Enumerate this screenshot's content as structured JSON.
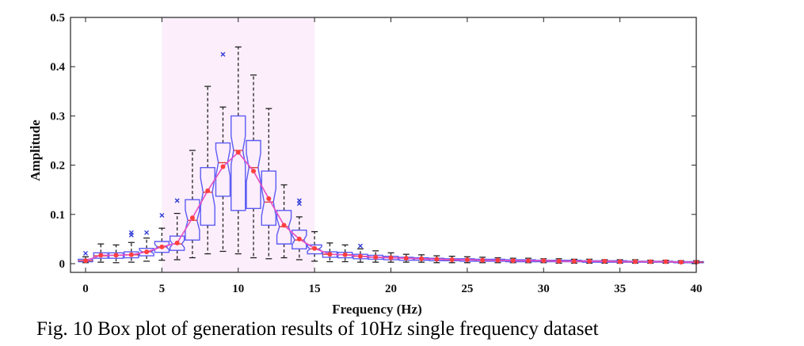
{
  "chart_data": {
    "type": "box",
    "xlabel": "Frequency (Hz)",
    "ylabel": "Amplitude",
    "xlim": [
      -1,
      40
    ],
    "ylim": [
      -0.02,
      0.5
    ],
    "xticks": [
      0,
      5,
      10,
      15,
      20,
      25,
      30,
      35,
      40
    ],
    "yticks": [
      0,
      0.1,
      0.2,
      0.3,
      0.4,
      0.5
    ],
    "ytick_labels": [
      "0",
      "0.1",
      "0.2",
      "0.3",
      "0.4",
      "0.5"
    ],
    "highlight_band": {
      "x_from": 5,
      "x_to": 15,
      "color": "#fceefa"
    },
    "box_color": "#5b5bf5",
    "mean_line_color": "#e64fc2",
    "mean_marker_color": "#ff3f3f",
    "outlier_color": "#2f3cd6",
    "boxes": [
      {
        "x": 0,
        "min": 0.002,
        "q1": 0.004,
        "median": 0.006,
        "q3": 0.009,
        "max": 0.014,
        "mean": 0.006,
        "outliers": [
          0.021
        ]
      },
      {
        "x": 1,
        "min": 0.003,
        "q1": 0.011,
        "median": 0.016,
        "q3": 0.022,
        "max": 0.04,
        "mean": 0.017,
        "outliers": []
      },
      {
        "x": 2,
        "min": 0.002,
        "q1": 0.011,
        "median": 0.017,
        "q3": 0.022,
        "max": 0.038,
        "mean": 0.017,
        "outliers": []
      },
      {
        "x": 3,
        "min": 0.003,
        "q1": 0.012,
        "median": 0.018,
        "q3": 0.024,
        "max": 0.043,
        "mean": 0.018,
        "outliers": [
          0.058,
          0.063
        ]
      },
      {
        "x": 4,
        "min": 0.005,
        "q1": 0.016,
        "median": 0.024,
        "q3": 0.031,
        "max": 0.052,
        "mean": 0.024,
        "outliers": [
          0.063
        ]
      },
      {
        "x": 5,
        "min": 0.007,
        "q1": 0.023,
        "median": 0.034,
        "q3": 0.045,
        "max": 0.072,
        "mean": 0.034,
        "outliers": [
          0.098
        ]
      },
      {
        "x": 6,
        "min": 0.008,
        "q1": 0.027,
        "median": 0.04,
        "q3": 0.056,
        "max": 0.102,
        "mean": 0.042,
        "outliers": [
          0.128
        ]
      },
      {
        "x": 7,
        "min": 0.012,
        "q1": 0.048,
        "median": 0.088,
        "q3": 0.13,
        "max": 0.23,
        "mean": 0.093,
        "outliers": []
      },
      {
        "x": 8,
        "min": 0.02,
        "q1": 0.078,
        "median": 0.145,
        "q3": 0.195,
        "max": 0.36,
        "mean": 0.148,
        "outliers": []
      },
      {
        "x": 9,
        "min": 0.025,
        "q1": 0.137,
        "median": 0.205,
        "q3": 0.245,
        "max": 0.318,
        "mean": 0.197,
        "outliers": [
          0.425
        ]
      },
      {
        "x": 10,
        "min": 0.02,
        "q1": 0.108,
        "median": 0.23,
        "q3": 0.3,
        "max": 0.44,
        "mean": 0.226,
        "outliers": []
      },
      {
        "x": 11,
        "min": 0.012,
        "q1": 0.112,
        "median": 0.195,
        "q3": 0.25,
        "max": 0.383,
        "mean": 0.188,
        "outliers": []
      },
      {
        "x": 12,
        "min": 0.01,
        "q1": 0.078,
        "median": 0.125,
        "q3": 0.188,
        "max": 0.315,
        "mean": 0.132,
        "outliers": []
      },
      {
        "x": 13,
        "min": 0.012,
        "q1": 0.04,
        "median": 0.075,
        "q3": 0.108,
        "max": 0.16,
        "mean": 0.078,
        "outliers": []
      },
      {
        "x": 14,
        "min": 0.008,
        "q1": 0.03,
        "median": 0.048,
        "q3": 0.068,
        "max": 0.095,
        "mean": 0.05,
        "outliers": [
          0.122,
          0.128
        ]
      },
      {
        "x": 15,
        "min": 0.005,
        "q1": 0.02,
        "median": 0.03,
        "q3": 0.038,
        "max": 0.065,
        "mean": 0.031,
        "outliers": []
      },
      {
        "x": 16,
        "min": 0.004,
        "q1": 0.013,
        "median": 0.019,
        "q3": 0.024,
        "max": 0.042,
        "mean": 0.019,
        "outliers": []
      },
      {
        "x": 17,
        "min": 0.004,
        "q1": 0.012,
        "median": 0.018,
        "q3": 0.023,
        "max": 0.038,
        "mean": 0.018,
        "outliers": []
      },
      {
        "x": 18,
        "min": 0.003,
        "q1": 0.01,
        "median": 0.015,
        "q3": 0.019,
        "max": 0.03,
        "mean": 0.015,
        "outliers": [
          0.036
        ]
      },
      {
        "x": 19,
        "min": 0.003,
        "q1": 0.009,
        "median": 0.013,
        "q3": 0.017,
        "max": 0.026,
        "mean": 0.013,
        "outliers": []
      },
      {
        "x": 20,
        "min": 0.003,
        "q1": 0.008,
        "median": 0.012,
        "q3": 0.015,
        "max": 0.022,
        "mean": 0.012,
        "outliers": []
      },
      {
        "x": 21,
        "min": 0.003,
        "q1": 0.007,
        "median": 0.011,
        "q3": 0.013,
        "max": 0.019,
        "mean": 0.011,
        "outliers": []
      },
      {
        "x": 22,
        "min": 0.003,
        "q1": 0.007,
        "median": 0.01,
        "q3": 0.012,
        "max": 0.018,
        "mean": 0.01,
        "outliers": []
      },
      {
        "x": 23,
        "min": 0.002,
        "q1": 0.006,
        "median": 0.009,
        "q3": 0.011,
        "max": 0.016,
        "mean": 0.009,
        "outliers": []
      },
      {
        "x": 24,
        "min": 0.002,
        "q1": 0.006,
        "median": 0.008,
        "q3": 0.01,
        "max": 0.015,
        "mean": 0.008,
        "outliers": []
      },
      {
        "x": 25,
        "min": 0.002,
        "q1": 0.005,
        "median": 0.008,
        "q3": 0.01,
        "max": 0.014,
        "mean": 0.008,
        "outliers": []
      },
      {
        "x": 26,
        "min": 0.002,
        "q1": 0.005,
        "median": 0.007,
        "q3": 0.009,
        "max": 0.013,
        "mean": 0.007,
        "outliers": []
      },
      {
        "x": 27,
        "min": 0.002,
        "q1": 0.005,
        "median": 0.007,
        "q3": 0.009,
        "max": 0.012,
        "mean": 0.007,
        "outliers": []
      },
      {
        "x": 28,
        "min": 0.002,
        "q1": 0.004,
        "median": 0.006,
        "q3": 0.008,
        "max": 0.011,
        "mean": 0.006,
        "outliers": []
      },
      {
        "x": 29,
        "min": 0.002,
        "q1": 0.004,
        "median": 0.006,
        "q3": 0.008,
        "max": 0.011,
        "mean": 0.006,
        "outliers": []
      },
      {
        "x": 30,
        "min": 0.002,
        "q1": 0.004,
        "median": 0.006,
        "q3": 0.007,
        "max": 0.01,
        "mean": 0.006,
        "outliers": []
      },
      {
        "x": 31,
        "min": 0.001,
        "q1": 0.004,
        "median": 0.005,
        "q3": 0.007,
        "max": 0.01,
        "mean": 0.005,
        "outliers": []
      },
      {
        "x": 32,
        "min": 0.001,
        "q1": 0.004,
        "median": 0.005,
        "q3": 0.007,
        "max": 0.009,
        "mean": 0.005,
        "outliers": []
      },
      {
        "x": 33,
        "min": 0.001,
        "q1": 0.003,
        "median": 0.005,
        "q3": 0.006,
        "max": 0.009,
        "mean": 0.005,
        "outliers": []
      },
      {
        "x": 34,
        "min": 0.001,
        "q1": 0.003,
        "median": 0.005,
        "q3": 0.006,
        "max": 0.008,
        "mean": 0.005,
        "outliers": []
      },
      {
        "x": 35,
        "min": 0.001,
        "q1": 0.003,
        "median": 0.004,
        "q3": 0.006,
        "max": 0.008,
        "mean": 0.004,
        "outliers": []
      },
      {
        "x": 36,
        "min": 0.001,
        "q1": 0.003,
        "median": 0.004,
        "q3": 0.005,
        "max": 0.008,
        "mean": 0.004,
        "outliers": []
      },
      {
        "x": 37,
        "min": 0.001,
        "q1": 0.003,
        "median": 0.004,
        "q3": 0.005,
        "max": 0.007,
        "mean": 0.004,
        "outliers": []
      },
      {
        "x": 38,
        "min": 0.001,
        "q1": 0.003,
        "median": 0.004,
        "q3": 0.005,
        "max": 0.007,
        "mean": 0.004,
        "outliers": []
      },
      {
        "x": 39,
        "min": 0.001,
        "q1": 0.002,
        "median": 0.003,
        "q3": 0.004,
        "max": 0.006,
        "mean": 0.003,
        "outliers": []
      },
      {
        "x": 40,
        "min": 0.001,
        "q1": 0.002,
        "median": 0.003,
        "q3": 0.004,
        "max": 0.006,
        "mean": 0.003,
        "outliers": []
      }
    ]
  },
  "caption": "Fig. 10 Box plot of generation results of 10Hz single frequency dataset"
}
